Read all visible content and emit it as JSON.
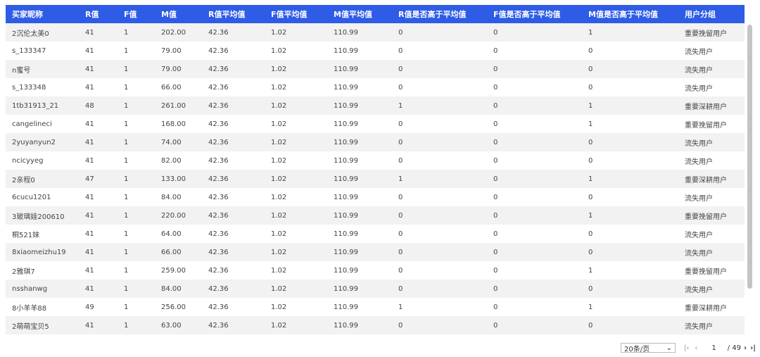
{
  "columns": [
    "买家昵称",
    "R值",
    "F值",
    "M值",
    "R值平均值",
    "F值平均值",
    "M值平均值",
    "R值是否高于平均值",
    "F值是否高于平均值",
    "M值是否高于平均值",
    "用户分组"
  ],
  "rows": [
    [
      "2沉伦太美0",
      "41",
      "1",
      "202.00",
      "42.36",
      "1.02",
      "110.99",
      "0",
      "0",
      "1",
      "重要挽留用户"
    ],
    [
      "s_133347",
      "41",
      "1",
      "79.00",
      "42.36",
      "1.02",
      "110.99",
      "0",
      "0",
      "0",
      "流失用户"
    ],
    [
      "n蜜号",
      "41",
      "1",
      "79.00",
      "42.36",
      "1.02",
      "110.99",
      "0",
      "0",
      "0",
      "流失用户"
    ],
    [
      "s_133348",
      "41",
      "1",
      "66.00",
      "42.36",
      "1.02",
      "110.99",
      "0",
      "0",
      "0",
      "流失用户"
    ],
    [
      "1tb31913_21",
      "48",
      "1",
      "261.00",
      "42.36",
      "1.02",
      "110.99",
      "1",
      "0",
      "1",
      "重要深耕用户"
    ],
    [
      "cangelineci",
      "41",
      "1",
      "168.00",
      "42.36",
      "1.02",
      "110.99",
      "0",
      "0",
      "1",
      "重要挽留用户"
    ],
    [
      "2yuyanyun2",
      "41",
      "1",
      "74.00",
      "42.36",
      "1.02",
      "110.99",
      "0",
      "0",
      "0",
      "流失用户"
    ],
    [
      "ncicyyeg",
      "41",
      "1",
      "82.00",
      "42.36",
      "1.02",
      "110.99",
      "0",
      "0",
      "0",
      "流失用户"
    ],
    [
      "2亲程0",
      "47",
      "1",
      "133.00",
      "42.36",
      "1.02",
      "110.99",
      "1",
      "0",
      "1",
      "重要深耕用户"
    ],
    [
      "6cucu1201",
      "41",
      "1",
      "84.00",
      "42.36",
      "1.02",
      "110.99",
      "0",
      "0",
      "0",
      "流失用户"
    ],
    [
      "3玻璃娃200610",
      "41",
      "1",
      "220.00",
      "42.36",
      "1.02",
      "110.99",
      "0",
      "0",
      "1",
      "重要挽留用户"
    ],
    [
      "桐521妹",
      "41",
      "1",
      "64.00",
      "42.36",
      "1.02",
      "110.99",
      "0",
      "0",
      "0",
      "流失用户"
    ],
    [
      "8xiaomeizhu19",
      "41",
      "1",
      "66.00",
      "42.36",
      "1.02",
      "110.99",
      "0",
      "0",
      "0",
      "流失用户"
    ],
    [
      "2雅琪7",
      "41",
      "1",
      "259.00",
      "42.36",
      "1.02",
      "110.99",
      "0",
      "0",
      "1",
      "重要挽留用户"
    ],
    [
      "nsshanwg",
      "41",
      "1",
      "84.00",
      "42.36",
      "1.02",
      "110.99",
      "0",
      "0",
      "0",
      "流失用户"
    ],
    [
      "8小羊羊88",
      "49",
      "1",
      "256.00",
      "42.36",
      "1.02",
      "110.99",
      "1",
      "0",
      "1",
      "重要深耕用户"
    ],
    [
      "2萌萌宝贝5",
      "41",
      "1",
      "63.00",
      "42.36",
      "1.02",
      "110.99",
      "0",
      "0",
      "0",
      "流失用户"
    ]
  ],
  "pagination": {
    "page_size": "20条/页",
    "current_page": "1",
    "total_pages": "/ 49"
  },
  "colors": {
    "header": "#2f5ce6"
  }
}
